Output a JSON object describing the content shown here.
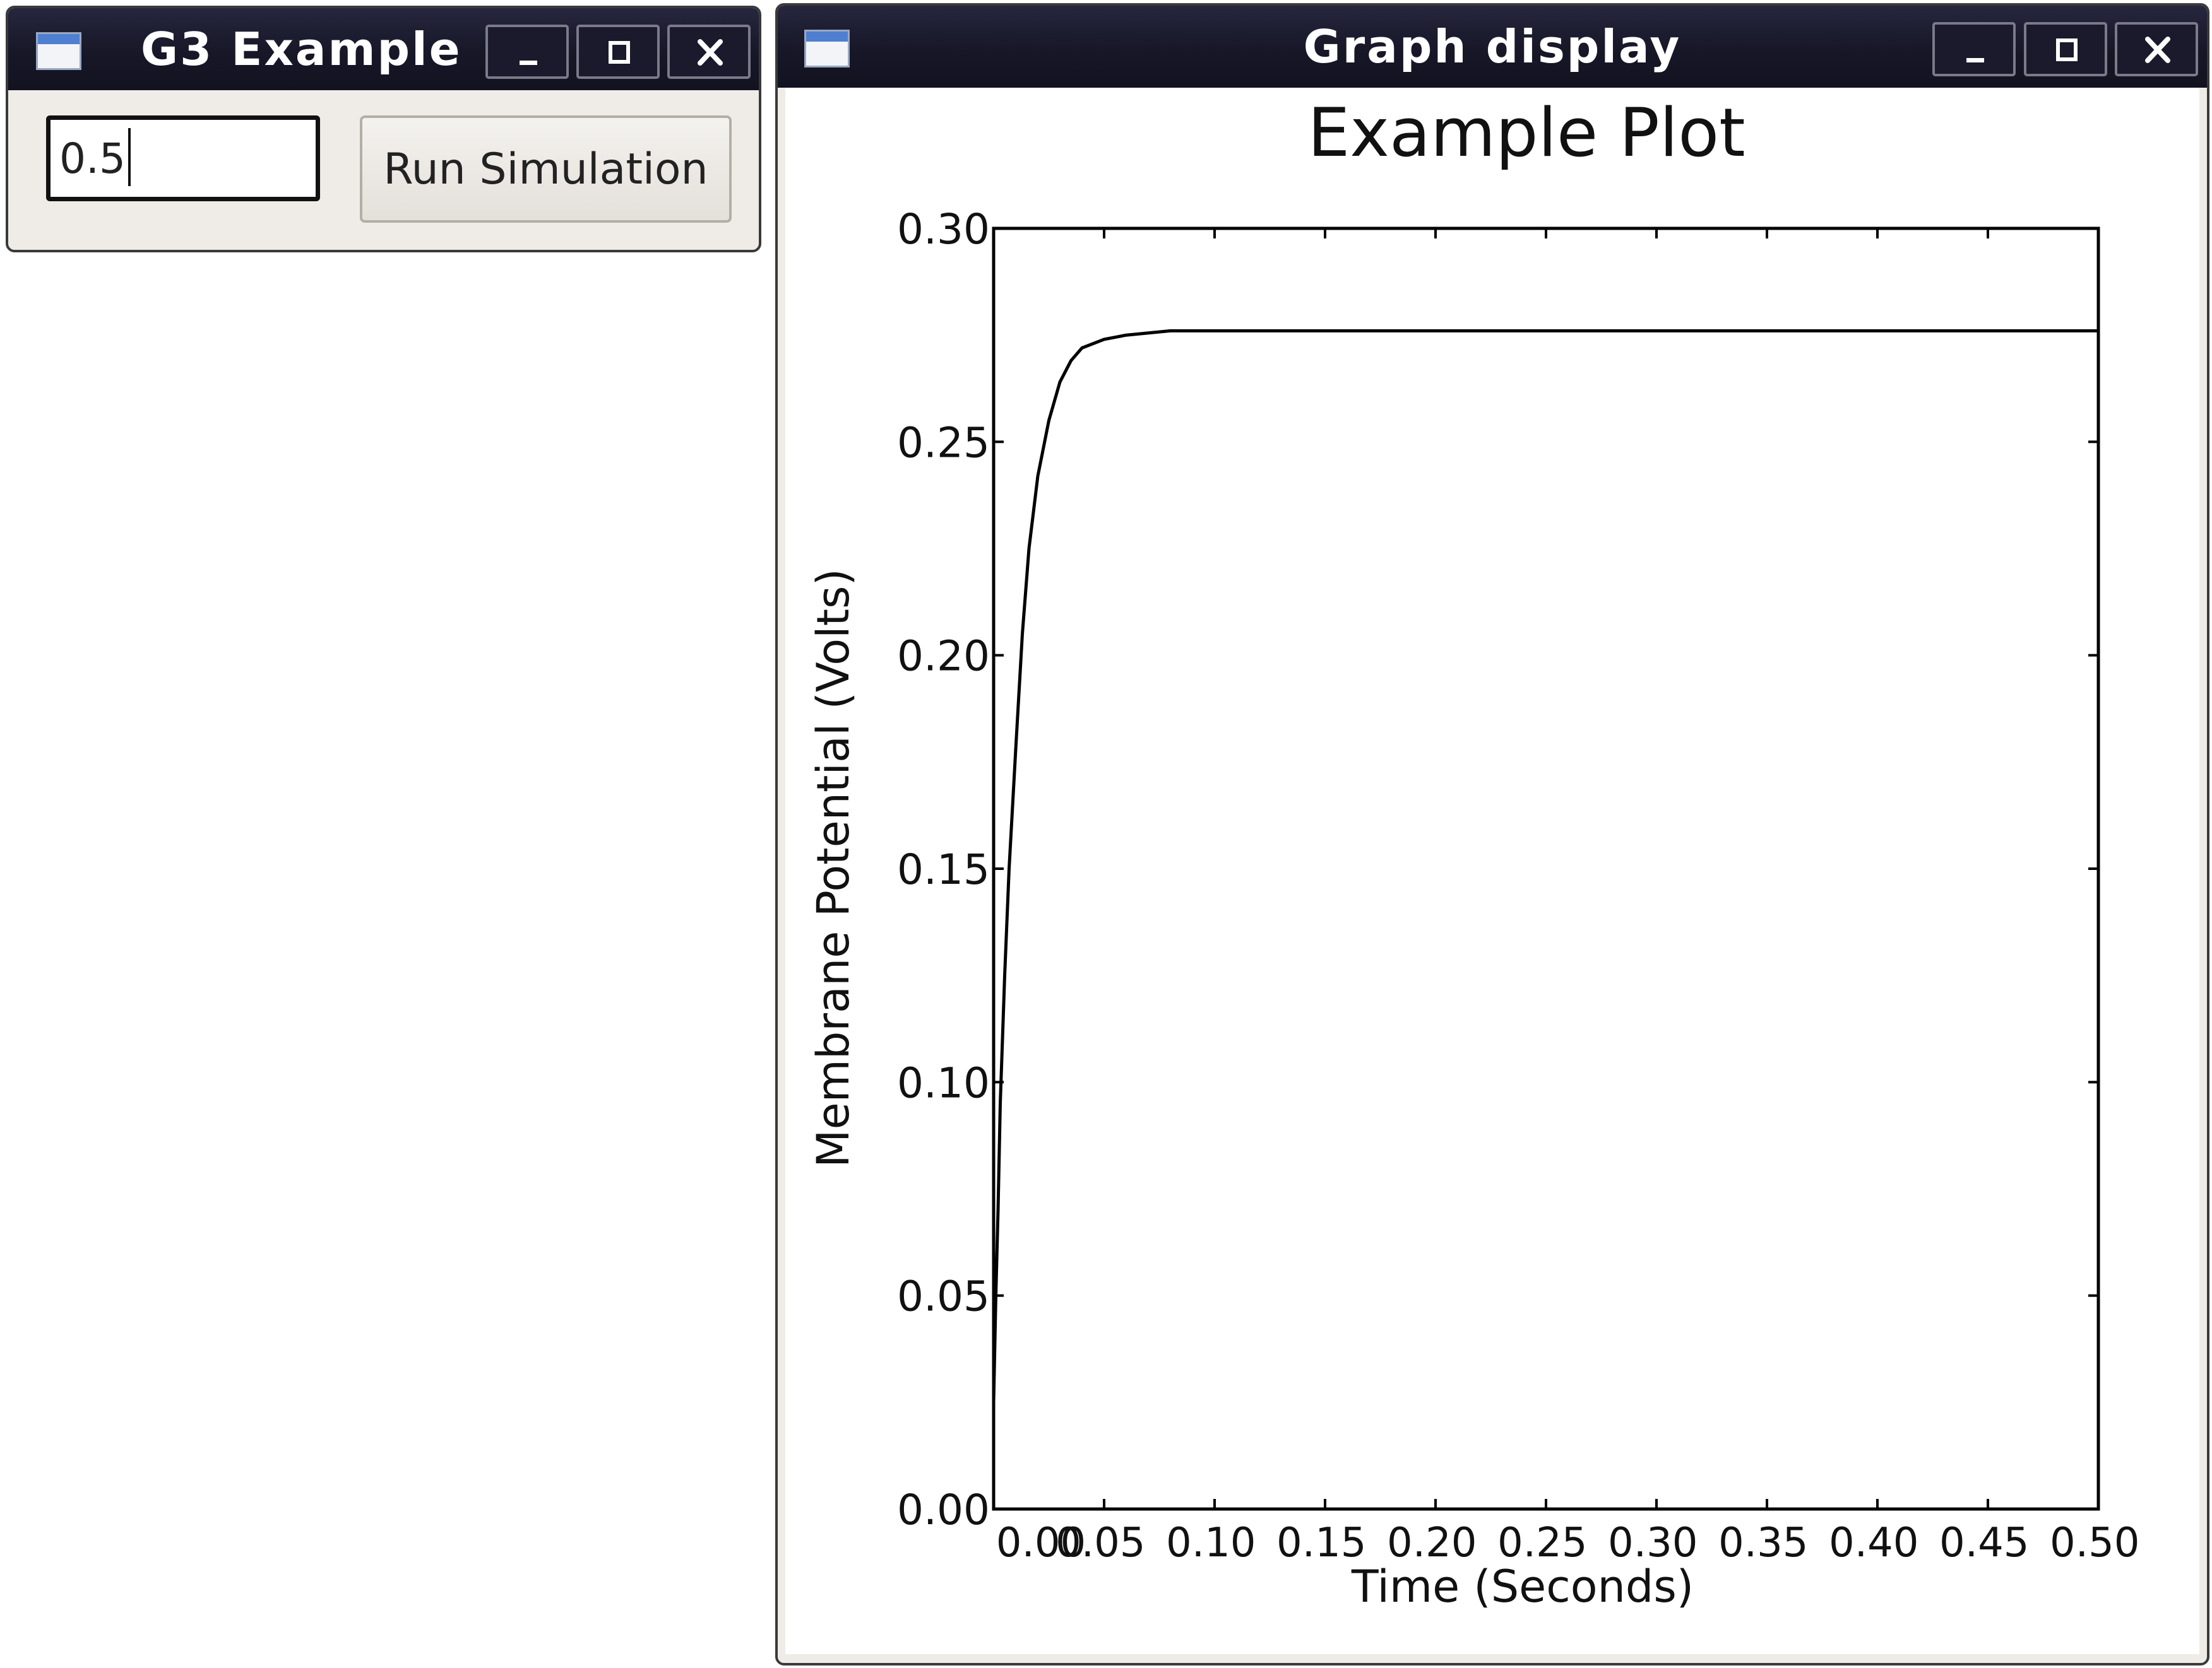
{
  "small_window": {
    "title": "G3 Example",
    "input_value": "0.5",
    "run_button_label": "Run Simulation"
  },
  "graph_window": {
    "title": "Graph display"
  },
  "chart_data": {
    "type": "line",
    "title": "Example Plot",
    "xlabel": "Time (Seconds)",
    "ylabel": "Membrane Potential (Volts)",
    "xlim": [
      -0.0,
      0.5
    ],
    "ylim": [
      0.0,
      0.3
    ],
    "xticks": [
      "0.00",
      "0.05",
      "0.10",
      "0.15",
      "0.20",
      "0.25",
      "0.30",
      "0.35",
      "0.40",
      "0.45",
      "0.50"
    ],
    "yticks": [
      "0.00",
      "0.05",
      "0.10",
      "0.15",
      "0.20",
      "0.25",
      "0.30"
    ],
    "grid": false,
    "series": [
      {
        "color": "#000000",
        "x": [
          0.0,
          0.001,
          0.002,
          0.003,
          0.005,
          0.007,
          0.01,
          0.013,
          0.016,
          0.02,
          0.025,
          0.03,
          0.035,
          0.04,
          0.05,
          0.06,
          0.08,
          0.1,
          0.15,
          0.2,
          0.3,
          0.4,
          0.5
        ],
        "y": [
          0.025,
          0.05,
          0.07,
          0.095,
          0.125,
          0.15,
          0.178,
          0.205,
          0.225,
          0.242,
          0.255,
          0.264,
          0.269,
          0.272,
          0.274,
          0.275,
          0.276,
          0.276,
          0.276,
          0.276,
          0.276,
          0.276,
          0.276
        ]
      }
    ]
  }
}
